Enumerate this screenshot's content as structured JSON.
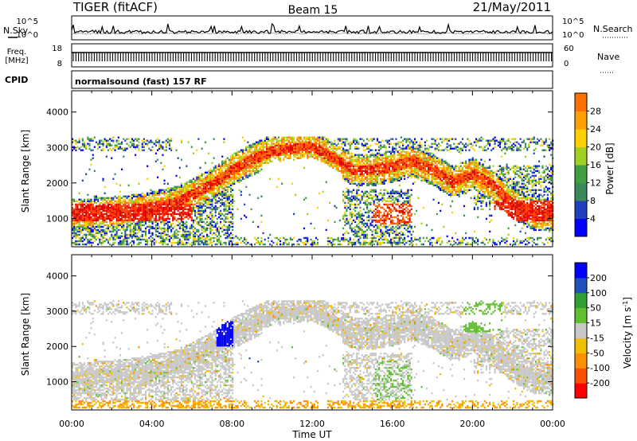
{
  "header": {
    "radar": "TIGER (fitACF)",
    "beam": "Beam 15",
    "date": "21/May/2011"
  },
  "side_labels": {
    "nsky": "N.Sky",
    "freq_line1": "Freq.",
    "freq_line2": "[MHz]",
    "cpid": "CPID",
    "nsearch": "N.Search",
    "nave": "Nave"
  },
  "noise_ticks": {
    "top": "10^5",
    "bottom": "10^0"
  },
  "freq_ticks": {
    "left_top": "18",
    "left_bottom": "8",
    "right_top": "60",
    "right_bottom": "0"
  },
  "cpid_text": "normalsound (fast) 157 RF",
  "colors": {
    "power_scale": [
      "#0000ff",
      "#2040c0",
      "#3a8a5a",
      "#40a040",
      "#a0d020",
      "#ffd000",
      "#ffa000",
      "#ff7000",
      "#ff4000",
      "#e00000"
    ],
    "velocity_scale": [
      "#ff0000",
      "#ff5000",
      "#ff9000",
      "#f0c000",
      "#c8c8c8",
      "#60c030",
      "#30a030",
      "#2050c0",
      "#0000ff"
    ]
  },
  "chart_data": [
    {
      "type": "heatmap",
      "panel": "power",
      "xlabel": "",
      "ylabel": "Slant Range [km]",
      "xlim": [
        "00:00",
        "24:00"
      ],
      "ylim": [
        200,
        4600
      ],
      "yticks": [
        "1000",
        "2000",
        "3000",
        "4000"
      ],
      "colorbar": {
        "label": "Power [dB]",
        "ticks": [
          "4",
          "8",
          "12",
          "16",
          "20",
          "24",
          "28"
        ],
        "range": [
          0,
          32
        ]
      },
      "bands": [
        {
          "t": [
            0,
            1,
            2,
            3,
            4,
            5,
            6,
            7,
            8,
            9,
            10,
            11,
            12,
            13,
            14,
            15,
            16,
            17,
            18,
            19,
            20,
            21,
            22,
            23,
            24
          ],
          "range": [
            1100,
            1100,
            1150,
            1200,
            1300,
            1400,
            1650,
            1950,
            2350,
            2650,
            2900,
            2950,
            3000,
            2700,
            2350,
            2350,
            2450,
            2600,
            2350,
            2000,
            2250,
            1900,
            1400,
            1100,
            1050
          ],
          "power": 28
        }
      ]
    },
    {
      "type": "heatmap",
      "panel": "velocity",
      "xlabel": "Time UT",
      "ylabel": "Slant Range [km]",
      "xlim": [
        "00:00",
        "24:00"
      ],
      "ylim": [
        200,
        4600
      ],
      "xticks": [
        "00:00",
        "04:00",
        "08:00",
        "12:00",
        "16:00",
        "20:00",
        "00:00"
      ],
      "yticks": [
        "1000",
        "2000",
        "3000",
        "4000"
      ],
      "colorbar": {
        "label": "Velocity [m s-1]",
        "ticks": [
          "200",
          "100",
          "50",
          "15",
          "-15",
          "-50",
          "-100",
          "-200"
        ],
        "range": [
          -250,
          250
        ]
      }
    }
  ]
}
